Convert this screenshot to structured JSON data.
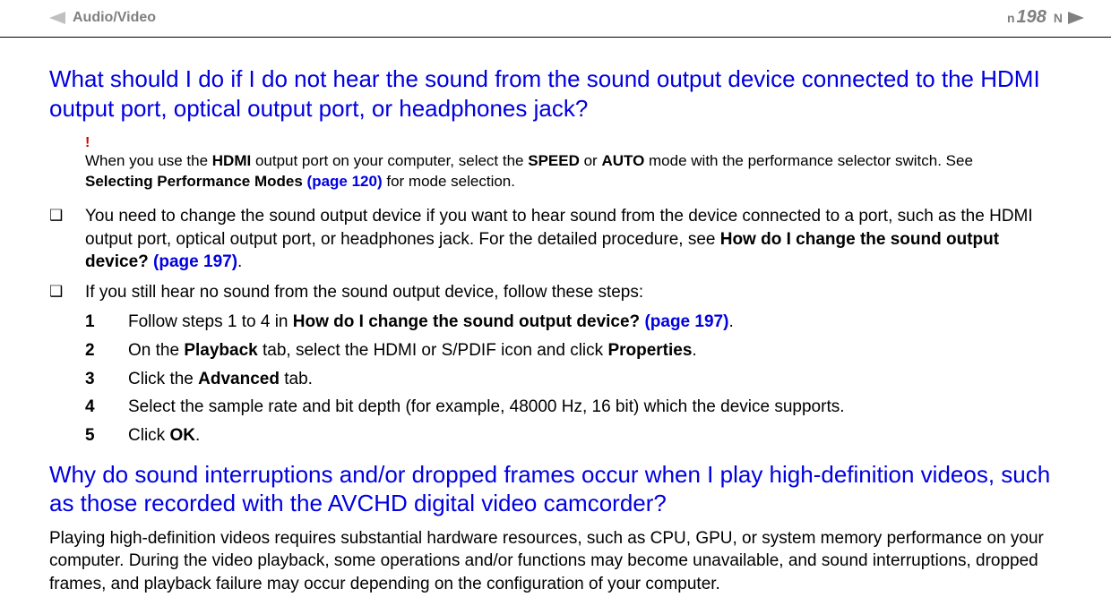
{
  "header": {
    "breadcrumb": "Audio/Video",
    "page_number": "198",
    "nav_letter_left": "n",
    "nav_letter_right": "N"
  },
  "section1": {
    "heading": "What should I do if I do not hear the sound from the sound output device connected to the HDMI output port, optical output port, or headphones jack?",
    "warning_mark": "!",
    "note_pre": "When you use the ",
    "note_hdmi": "HDMI",
    "note_mid1": " output port on your computer, select the ",
    "note_speed": "SPEED",
    "note_mid2": " or ",
    "note_auto": "AUTO",
    "note_mid3": " mode with the performance selector switch. See ",
    "note_selecting": "Selecting Performance Modes",
    "note_page120": " (page 120)",
    "note_end": " for mode selection.",
    "bullet1_pre": "You need to change the sound output device if you want to hear sound from the device connected to a port, such as the HDMI output port, optical output port, or headphones jack. For the detailed procedure, see ",
    "bullet1_link_text": "How do I change the sound output device?",
    "bullet1_page": " (page 197)",
    "bullet1_end": ".",
    "bullet2": "If you still hear no sound from the sound output device, follow these steps:",
    "steps": [
      {
        "num": "1",
        "pre": "Follow steps 1 to 4 in ",
        "bold": "How do I change the sound output device?",
        "link": " (page 197)",
        "post": "."
      },
      {
        "num": "2",
        "pre": "On the ",
        "bold": "Playback",
        "mid": " tab, select the HDMI or S/PDIF icon and click ",
        "bold2": "Properties",
        "post": "."
      },
      {
        "num": "3",
        "pre": "Click the ",
        "bold": "Advanced",
        "post": " tab."
      },
      {
        "num": "4",
        "pre": "Select the sample rate and bit depth (for example, 48000 Hz, 16 bit) which the device supports.",
        "bold": "",
        "post": ""
      },
      {
        "num": "5",
        "pre": "Click ",
        "bold": "OK",
        "post": "."
      }
    ]
  },
  "section2": {
    "heading": "Why do sound interruptions and/or dropped frames occur when I play high-definition videos, such as those recorded with the AVCHD digital video camcorder?",
    "para": "Playing high-definition videos requires substantial hardware resources, such as CPU, GPU, or system memory performance on your computer. During the video playback, some operations and/or functions may become unavailable, and sound interruptions, dropped frames, and playback failure may occur depending on the configuration of your computer."
  },
  "styles": {
    "heading_color": "#0000e0",
    "link_color": "#0000e0",
    "warning_color": "#cc0000",
    "breadcrumb_color": "#808080",
    "background": "#ffffff"
  }
}
